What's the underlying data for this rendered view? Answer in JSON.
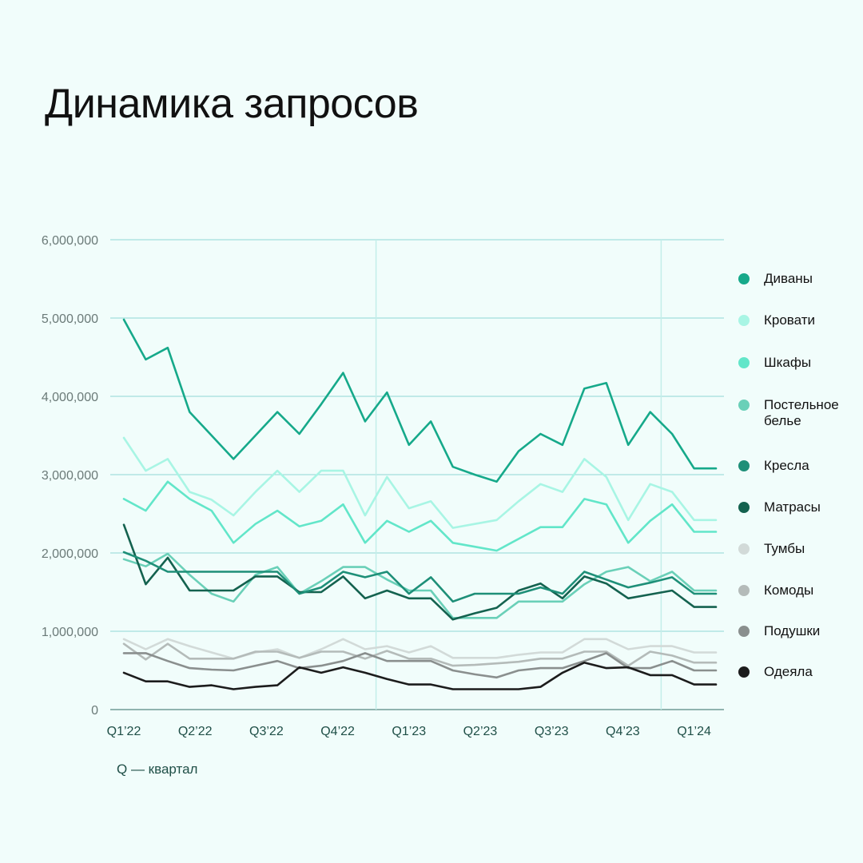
{
  "title": "Динамика запросов",
  "note": "Q — квартал",
  "chart_data": {
    "type": "line",
    "title": "Динамика запросов",
    "xlabel": "",
    "ylabel": "",
    "ylim": [
      0,
      6000000
    ],
    "yticks": [
      0,
      1000000,
      2000000,
      3000000,
      4000000,
      5000000,
      6000000
    ],
    "ytick_labels": [
      "0",
      "1,000,000",
      "2,000,000",
      "3,000,000",
      "4,000,000",
      "5,000,000",
      "6,000,000"
    ],
    "xtick_labels": [
      "Q1’22",
      "Q2’22",
      "Q3’22",
      "Q4’22",
      "Q1’23",
      "Q2’23",
      "Q3’23",
      "Q4’23",
      "Q1’24"
    ],
    "x_points": 28,
    "grid": "horizontal",
    "legend_position": "right",
    "series": [
      {
        "name": "Диваны",
        "color": "#16a98a",
        "values": [
          4980000,
          4470000,
          4620000,
          3800000,
          3500000,
          3200000,
          3500000,
          3800000,
          3520000,
          3900000,
          4300000,
          3680000,
          4050000,
          3380000,
          3680000,
          3100000,
          3000000,
          2910000,
          3300000,
          3520000,
          3380000,
          4100000,
          4170000,
          3380000,
          3800000,
          3520000,
          3080000,
          3080000
        ]
      },
      {
        "name": "Кровати",
        "color": "#a8f5e4",
        "values": [
          3470000,
          3050000,
          3200000,
          2780000,
          2680000,
          2480000,
          2780000,
          3050000,
          2780000,
          3050000,
          3050000,
          2480000,
          2970000,
          2570000,
          2660000,
          2320000,
          2370000,
          2420000,
          2660000,
          2880000,
          2780000,
          3200000,
          2970000,
          2420000,
          2880000,
          2780000,
          2420000,
          2420000
        ]
      },
      {
        "name": "Шкафы",
        "color": "#62e6c9",
        "values": [
          2690000,
          2540000,
          2910000,
          2690000,
          2540000,
          2130000,
          2370000,
          2540000,
          2340000,
          2410000,
          2620000,
          2130000,
          2410000,
          2270000,
          2410000,
          2130000,
          2080000,
          2030000,
          2180000,
          2330000,
          2330000,
          2690000,
          2620000,
          2130000,
          2410000,
          2620000,
          2270000,
          2270000
        ]
      },
      {
        "name": "Постельное белье",
        "color": "#6ad0b8",
        "values": [
          1920000,
          1830000,
          1990000,
          1720000,
          1480000,
          1380000,
          1720000,
          1820000,
          1480000,
          1640000,
          1820000,
          1820000,
          1660000,
          1520000,
          1520000,
          1170000,
          1170000,
          1170000,
          1380000,
          1380000,
          1380000,
          1600000,
          1760000,
          1820000,
          1640000,
          1760000,
          1520000,
          1520000
        ]
      },
      {
        "name": "Кресла",
        "color": "#1e8f78",
        "values": [
          2010000,
          1900000,
          1760000,
          1760000,
          1760000,
          1760000,
          1760000,
          1760000,
          1480000,
          1560000,
          1760000,
          1690000,
          1760000,
          1480000,
          1690000,
          1380000,
          1480000,
          1480000,
          1480000,
          1560000,
          1480000,
          1760000,
          1660000,
          1560000,
          1620000,
          1690000,
          1480000,
          1480000
        ]
      },
      {
        "name": "Матрасы",
        "color": "#14624f",
        "values": [
          2360000,
          1600000,
          1940000,
          1520000,
          1520000,
          1520000,
          1700000,
          1700000,
          1500000,
          1500000,
          1700000,
          1420000,
          1520000,
          1420000,
          1420000,
          1150000,
          1230000,
          1300000,
          1520000,
          1610000,
          1420000,
          1700000,
          1610000,
          1420000,
          1470000,
          1520000,
          1310000,
          1310000
        ]
      },
      {
        "name": "Тумбы",
        "color": "#d2dad8",
        "values": [
          900000,
          770000,
          900000,
          810000,
          730000,
          650000,
          730000,
          770000,
          660000,
          770000,
          900000,
          770000,
          810000,
          730000,
          810000,
          660000,
          660000,
          660000,
          700000,
          730000,
          730000,
          900000,
          900000,
          770000,
          810000,
          810000,
          730000,
          730000
        ]
      },
      {
        "name": "Комоды",
        "color": "#b4bbb9",
        "values": [
          840000,
          640000,
          840000,
          650000,
          650000,
          650000,
          740000,
          740000,
          660000,
          740000,
          740000,
          650000,
          750000,
          650000,
          650000,
          560000,
          570000,
          590000,
          610000,
          650000,
          650000,
          740000,
          740000,
          560000,
          740000,
          690000,
          600000,
          600000
        ]
      },
      {
        "name": "Подушки",
        "color": "#8a8f8e",
        "values": [
          720000,
          720000,
          620000,
          530000,
          510000,
          500000,
          560000,
          620000,
          530000,
          560000,
          620000,
          720000,
          620000,
          620000,
          620000,
          500000,
          450000,
          410000,
          500000,
          530000,
          530000,
          620000,
          720000,
          530000,
          530000,
          620000,
          500000,
          500000
        ]
      },
      {
        "name": "Одеяла",
        "color": "#1c1c1c",
        "values": [
          470000,
          360000,
          360000,
          290000,
          310000,
          260000,
          290000,
          310000,
          540000,
          470000,
          540000,
          470000,
          390000,
          320000,
          320000,
          260000,
          260000,
          260000,
          260000,
          290000,
          470000,
          600000,
          530000,
          540000,
          440000,
          440000,
          320000,
          320000
        ]
      }
    ]
  }
}
